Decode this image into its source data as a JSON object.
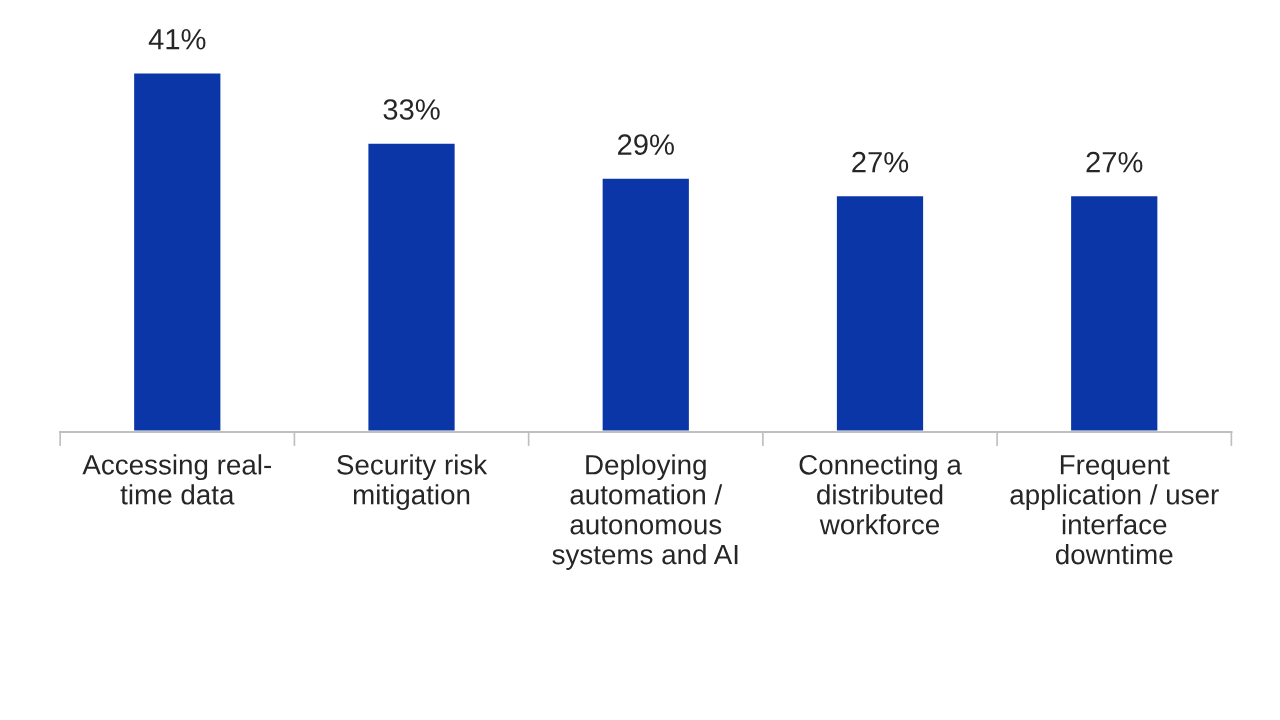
{
  "chart_data": {
    "type": "bar",
    "categories": [
      "Accessing real-\ntime data",
      "Security risk\nmitigation",
      "Deploying\nautomation /\nautonomous\nsystems and AI",
      "Connecting a\ndistributed\nworkforce",
      "Frequent\napplication / user\ninterface\ndowntime"
    ],
    "values": [
      41,
      33,
      29,
      27,
      27
    ],
    "value_labels": [
      "41%",
      "33%",
      "29%",
      "27%",
      "27%"
    ],
    "color": "#0b36a8",
    "relative": false
  }
}
